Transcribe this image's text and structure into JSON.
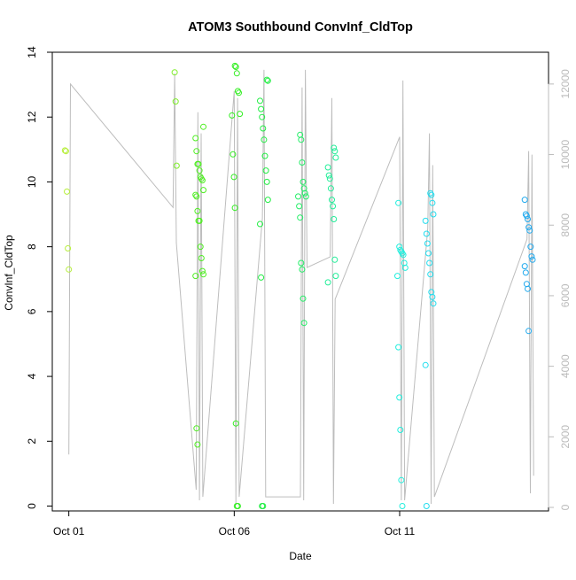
{
  "chart_data": {
    "type": "scatter",
    "title": "ATOM3 Southbound ConvInf_CldTop",
    "xlabel": "Date",
    "ylabel": "ConvInf_CldTop",
    "ylabel_right": "",
    "x_ticks": [
      {
        "label": "Oct 01",
        "day": 1
      },
      {
        "label": "Oct 06",
        "day": 6
      },
      {
        "label": "Oct 11",
        "day": 11
      }
    ],
    "xlim_days": [
      0.5,
      15.5
    ],
    "ylim": [
      -0.15,
      14.0
    ],
    "y_ticks": [
      0,
      2,
      4,
      6,
      8,
      10,
      12,
      14
    ],
    "y2lim": [
      -100,
      12900
    ],
    "y2_ticks": [
      0,
      2000,
      4000,
      6000,
      8000,
      10000,
      12000
    ],
    "grid": false,
    "legend": "none",
    "colors": {
      "axis": "#000000",
      "secondary_axis": "#bbbbbb",
      "altitude_line": "#bdbdbd",
      "color_ramp": [
        "#b7ee3c",
        "#7fee28",
        "#22ee22",
        "#22ee88",
        "#22eecc",
        "#22ccee",
        "#22aaee"
      ]
    },
    "series": [
      {
        "day": 1.0,
        "color": "#b7ee3c",
        "y": [
          10.97,
          10.95,
          9.7,
          7.95,
          7.3
        ]
      },
      {
        "day": 4.2,
        "color": "#7fee28",
        "y": [
          13.38,
          12.48,
          10.5
        ]
      },
      {
        "day": 4.95,
        "color": "#4fee22",
        "y": [
          11.7,
          11.35,
          10.95,
          10.55,
          10.55,
          10.35,
          10.15,
          10.1,
          10.05,
          9.75,
          9.6,
          9.55,
          9.1,
          8.8,
          8.8,
          8.0,
          7.65,
          7.25,
          7.15,
          7.1,
          2.4,
          1.9
        ]
      },
      {
        "day": 6.05,
        "color": "#33ee22",
        "y": [
          13.58,
          13.55,
          13.35,
          12.8,
          12.75,
          12.1,
          12.05,
          10.85,
          10.15,
          9.2,
          2.55,
          0.0,
          0.0
        ]
      },
      {
        "day": 6.9,
        "color": "#22ee44",
        "y": [
          13.15,
          13.12,
          12.5,
          12.25,
          12.0,
          11.65,
          11.3,
          10.8,
          10.35,
          10.0,
          9.45,
          8.7,
          7.05,
          0.0,
          0.0
        ]
      },
      {
        "day": 8.05,
        "color": "#22ee66",
        "y": [
          11.45,
          11.3,
          10.6,
          10.0,
          9.8,
          9.65,
          9.55,
          9.55,
          9.25,
          8.9,
          7.5,
          7.3,
          6.4,
          5.65
        ]
      },
      {
        "day": 8.95,
        "color": "#22ee99",
        "y": [
          11.05,
          10.95,
          10.75,
          10.45,
          10.2,
          10.1,
          9.8,
          9.45,
          9.25,
          8.85,
          7.6,
          7.1,
          6.9
        ]
      },
      {
        "day": 11.05,
        "color": "#22eedd",
        "y": [
          9.35,
          8.0,
          7.9,
          7.85,
          7.8,
          7.75,
          7.5,
          7.35,
          7.1,
          4.9,
          3.35,
          2.35,
          0.8,
          0.0
        ]
      },
      {
        "day": 11.9,
        "color": "#22ddee",
        "y": [
          9.65,
          9.6,
          9.35,
          9.0,
          8.8,
          8.4,
          8.1,
          7.8,
          7.5,
          7.15,
          6.6,
          6.45,
          6.25,
          4.35,
          0.0
        ]
      },
      {
        "day": 14.9,
        "color": "#22aaee",
        "y": [
          9.45,
          9.0,
          8.95,
          8.85,
          8.6,
          8.5,
          8.0,
          7.7,
          7.6,
          7.4,
          7.2,
          6.85,
          6.7,
          5.4
        ]
      }
    ],
    "altitude_line": [
      [
        1.0,
        1500
      ],
      [
        1.05,
        12000
      ],
      [
        4.15,
        8500
      ],
      [
        4.2,
        12300
      ],
      [
        4.25,
        7500
      ],
      [
        4.85,
        500
      ],
      [
        4.9,
        11200
      ],
      [
        4.95,
        200
      ],
      [
        5.0,
        10600
      ],
      [
        5.05,
        300
      ],
      [
        6.0,
        11800
      ],
      [
        6.05,
        100
      ],
      [
        6.1,
        11600
      ],
      [
        6.15,
        300
      ],
      [
        6.85,
        8200
      ],
      [
        6.9,
        12400
      ],
      [
        6.95,
        300
      ],
      [
        8.0,
        300
      ],
      [
        8.05,
        11900
      ],
      [
        8.1,
        200
      ],
      [
        8.15,
        12400
      ],
      [
        8.2,
        6800
      ],
      [
        8.9,
        7100
      ],
      [
        8.95,
        11600
      ],
      [
        9.0,
        100
      ],
      [
        9.05,
        5900
      ],
      [
        11.0,
        10500
      ],
      [
        11.05,
        200
      ],
      [
        11.1,
        12100
      ],
      [
        11.15,
        200
      ],
      [
        11.85,
        7900
      ],
      [
        11.9,
        10600
      ],
      [
        11.95,
        100
      ],
      [
        12.0,
        9700
      ],
      [
        12.05,
        300
      ],
      [
        14.85,
        7600
      ],
      [
        14.9,
        10100
      ],
      [
        14.95,
        400
      ],
      [
        15.0,
        10000
      ],
      [
        15.05,
        900
      ]
    ]
  }
}
